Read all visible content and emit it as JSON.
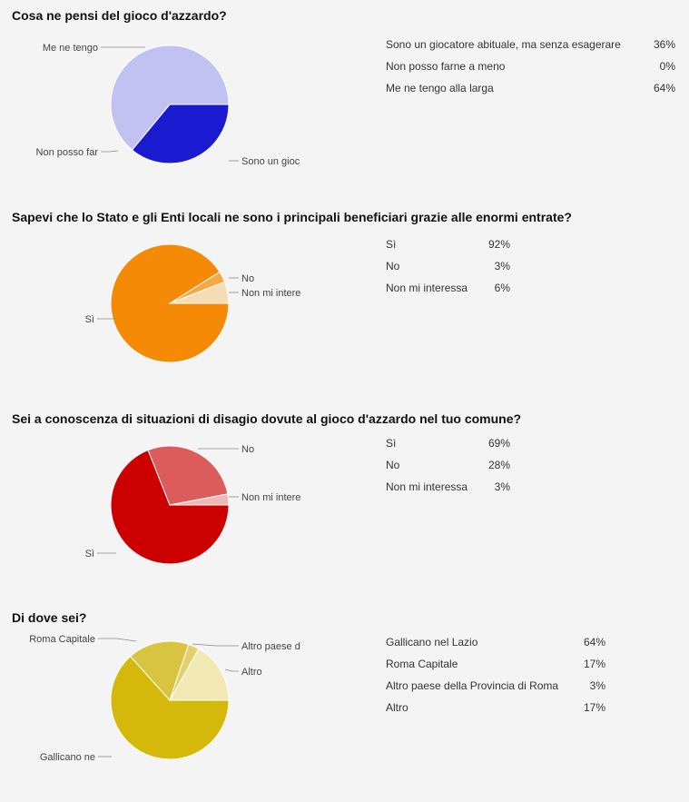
{
  "colors": {
    "q1": [
      "#1a1ad0",
      "#c2c2f2",
      "#c2c2f2"
    ],
    "q2": [
      "#f48a06",
      "#f4aa44",
      "#f6dcb4"
    ],
    "q3": [
      "#cc0000",
      "#dc5c5c",
      "#f0b8b8"
    ],
    "q4": [
      "#d4b80a",
      "#d8c440",
      "#e2d070",
      "#f2e8b4"
    ]
  },
  "chart_data": [
    {
      "type": "pie",
      "title": "Cosa ne pensi del gioco d'azzardo?",
      "series": [
        {
          "label": "Sono un giocatore abituale, ma senza esagerare",
          "short_label": "Sono un gioc",
          "value": 36,
          "display": "36%"
        },
        {
          "label": "Non posso farne a meno",
          "short_label": "Non posso far",
          "value": 0,
          "display": "0%"
        },
        {
          "label": "Me ne tengo alla larga",
          "short_label": "Me ne tengo",
          "value": 64,
          "display": "64%"
        }
      ]
    },
    {
      "type": "pie",
      "title": "Sapevi che lo Stato e gli Enti locali ne sono i principali beneficiari grazie alle enormi entrate?",
      "series": [
        {
          "label": "Sì",
          "short_label": "Sì",
          "value": 92,
          "display": "92%"
        },
        {
          "label": "No",
          "short_label": "No",
          "value": 3,
          "display": "3%"
        },
        {
          "label": "Non mi interessa",
          "short_label": "Non mi intere",
          "value": 6,
          "display": "6%"
        }
      ]
    },
    {
      "type": "pie",
      "title": "Sei a conoscenza di situazioni di disagio dovute al gioco d'azzardo nel tuo comune?",
      "series": [
        {
          "label": "Sì",
          "short_label": "Sì",
          "value": 69,
          "display": "69%"
        },
        {
          "label": "No",
          "short_label": "No",
          "value": 28,
          "display": "28%"
        },
        {
          "label": "Non mi interessa",
          "short_label": "Non mi intere",
          "value": 3,
          "display": "3%"
        }
      ]
    },
    {
      "type": "pie",
      "title": "Di dove sei?",
      "series": [
        {
          "label": "Gallicano nel Lazio",
          "short_label": "Gallicano ne",
          "value": 64,
          "display": "64%"
        },
        {
          "label": "Roma Capitale",
          "short_label": "Roma Capitale",
          "value": 17,
          "display": "17%"
        },
        {
          "label": "Altro paese della Provincia di Roma",
          "short_label": "Altro paese d",
          "value": 3,
          "display": "3%"
        },
        {
          "label": "Altro",
          "short_label": "Altro",
          "value": 17,
          "display": "17%"
        }
      ]
    }
  ]
}
